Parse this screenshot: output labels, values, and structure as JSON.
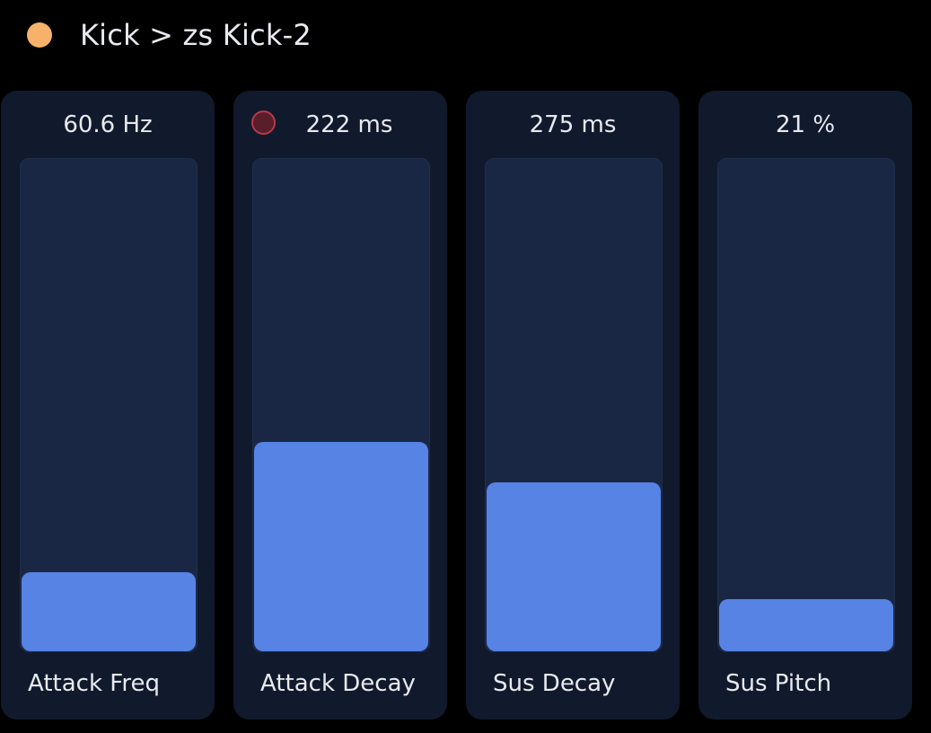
{
  "header": {
    "breadcrumb": "Kick > zs Kick-2",
    "track_color": "#f6b26b"
  },
  "colors": {
    "panel_bg": "#111a2c",
    "track_bg": "#1a2744",
    "fill": "#5683e4",
    "modulation_dot": "#b8384c"
  },
  "params": [
    {
      "label": "Attack Freq",
      "value": "60.6 Hz",
      "level": 0.16,
      "modulated": false
    },
    {
      "label": "Attack Decay",
      "value": "222 ms",
      "level": 0.425,
      "modulated": true
    },
    {
      "label": "Sus Decay",
      "value": "275 ms",
      "level": 0.343,
      "modulated": false
    },
    {
      "label": "Sus Pitch",
      "value": "21 %",
      "level": 0.105,
      "modulated": false
    }
  ]
}
